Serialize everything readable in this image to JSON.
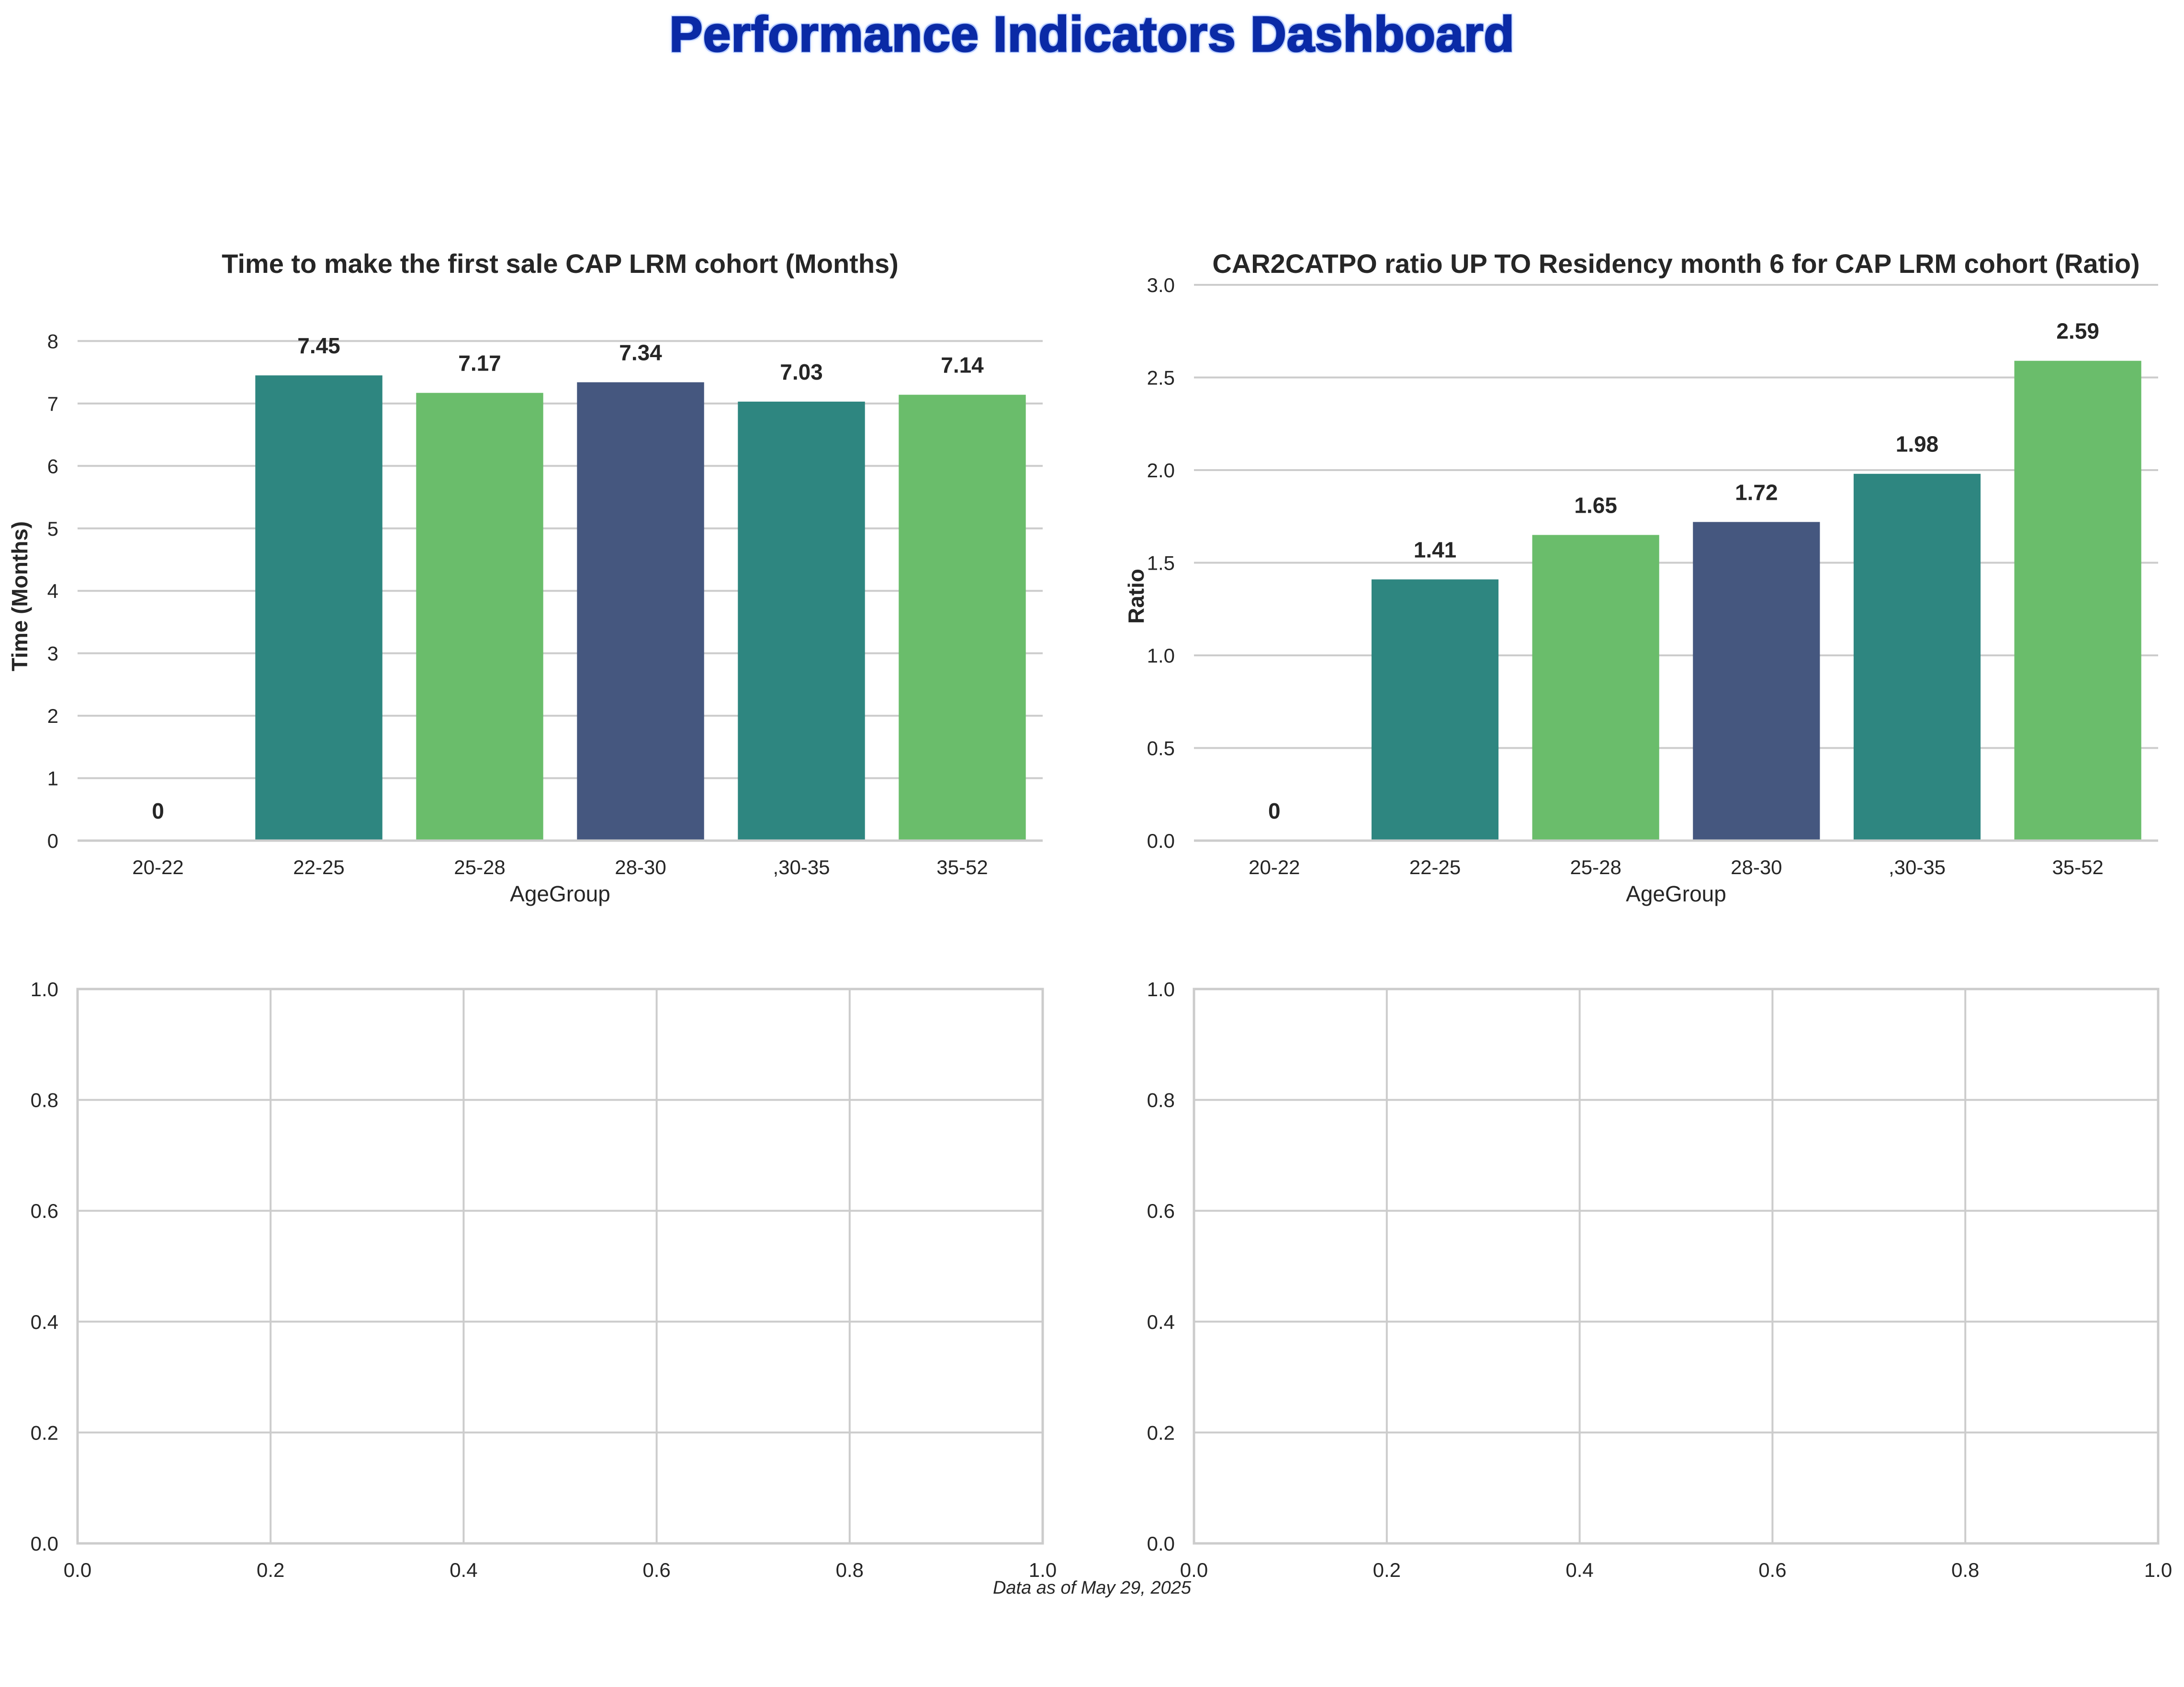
{
  "dashboard": {
    "title": "Performance Indicators Dashboard",
    "footer": "Data as of May 29, 2025",
    "title_color": "#0a2aa6"
  },
  "chart_data": [
    {
      "type": "bar",
      "title": "Time to make the first sale CAP LRM cohort (Months)",
      "xlabel": "AgeGroup",
      "ylabel": "Time (Months)",
      "categories": [
        "20-22",
        "22-25",
        "25-28",
        "28-30",
        ",30-35",
        "35-52"
      ],
      "values": [
        0,
        7.45,
        7.17,
        7.34,
        7.03,
        7.14
      ],
      "data_labels": [
        "0",
        "7.45",
        "7.17",
        "7.34",
        "7.03",
        "7.14"
      ],
      "colors": [
        "#2e8680",
        "#2e8680",
        "#6abd6b",
        "#45577f",
        "#2e8680",
        "#6abd6b"
      ],
      "ylim": [
        0,
        8.9
      ],
      "yticks": [
        0,
        1,
        2,
        3,
        4,
        5,
        6,
        7,
        8
      ],
      "ytick_labels": [
        "0",
        "1",
        "2",
        "3",
        "4",
        "5",
        "6",
        "7",
        "8"
      ],
      "grid": "horizontal"
    },
    {
      "type": "bar",
      "title": "CAR2CATPO ratio UP TO Residency month 6 for CAP LRM cohort (Ratio)",
      "xlabel": "AgeGroup",
      "ylabel": "Ratio",
      "categories": [
        "20-22",
        "22-25",
        "25-28",
        "28-30",
        ",30-35",
        "35-52"
      ],
      "values": [
        0,
        1.41,
        1.65,
        1.72,
        1.98,
        2.59
      ],
      "data_labels": [
        "0",
        "1.41",
        "1.65",
        "1.72",
        "1.98",
        "2.59"
      ],
      "colors": [
        "#2e8680",
        "#2e8680",
        "#6abd6b",
        "#45577f",
        "#2e8680",
        "#6abd6b"
      ],
      "ylim": [
        0,
        3.0
      ],
      "yticks": [
        0,
        0.5,
        1.0,
        1.5,
        2.0,
        2.5,
        3.0
      ],
      "ytick_labels": [
        "0.0",
        "0.5",
        "1.0",
        "1.5",
        "2.0",
        "2.5",
        "3.0"
      ],
      "grid": "horizontal"
    },
    {
      "type": "empty",
      "xlim": [
        0,
        1
      ],
      "ylim": [
        0,
        1
      ],
      "xticks": [
        0,
        0.2,
        0.4,
        0.6,
        0.8,
        1.0
      ],
      "yticks": [
        0,
        0.2,
        0.4,
        0.6,
        0.8,
        1.0
      ],
      "xtick_labels": [
        "0.0",
        "0.2",
        "0.4",
        "0.6",
        "0.8",
        "1.0"
      ],
      "ytick_labels": [
        "0.0",
        "0.2",
        "0.4",
        "0.6",
        "0.8",
        "1.0"
      ],
      "grid": "both"
    },
    {
      "type": "empty",
      "xlim": [
        0,
        1
      ],
      "ylim": [
        0,
        1
      ],
      "xticks": [
        0,
        0.2,
        0.4,
        0.6,
        0.8,
        1.0
      ],
      "yticks": [
        0,
        0.2,
        0.4,
        0.6,
        0.8,
        1.0
      ],
      "xtick_labels": [
        "0.0",
        "0.2",
        "0.4",
        "0.6",
        "0.8",
        "1.0"
      ],
      "ytick_labels": [
        "0.0",
        "0.2",
        "0.4",
        "0.6",
        "0.8",
        "1.0"
      ],
      "grid": "both"
    }
  ]
}
